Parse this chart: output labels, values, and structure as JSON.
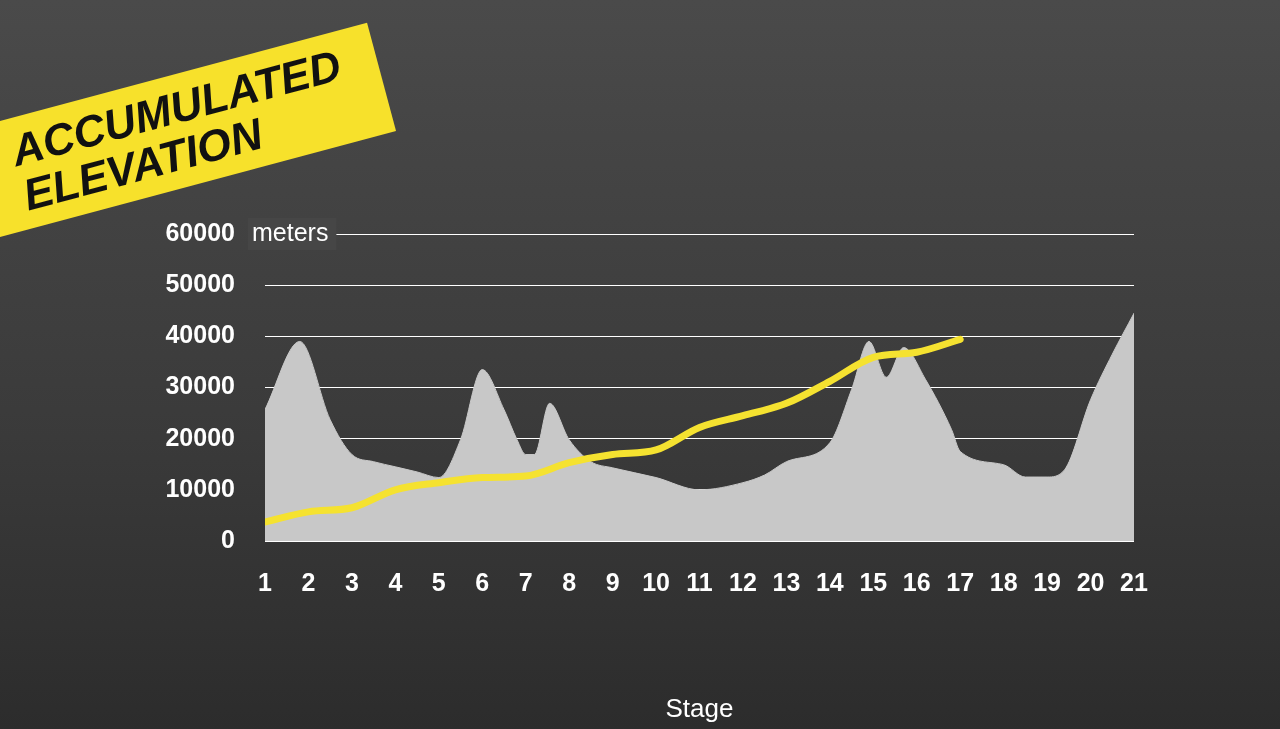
{
  "chart_data": {
    "type": "line",
    "title": "ACCUMULATED ELEVATION",
    "xlabel": "Stage",
    "ylabel": "meters",
    "xlim": [
      1,
      21
    ],
    "xticks": [
      1,
      2,
      3,
      4,
      5,
      6,
      7,
      8,
      9,
      10,
      11,
      12,
      13,
      14,
      15,
      16,
      17,
      18,
      19,
      20,
      21
    ],
    "ylim": [
      0,
      60000
    ],
    "yticks": [
      0,
      10000,
      20000,
      30000,
      40000,
      50000,
      60000
    ],
    "grid": "y",
    "legend": false,
    "marker": "none",
    "series": [
      {
        "type": "area",
        "color": "#c8c8c8",
        "x": [
          1,
          1.8,
          2.5,
          3,
          3.5,
          4,
          4.5,
          5,
          5.5,
          6,
          6.5,
          6.8,
          7,
          7.2,
          7.55,
          8,
          8.5,
          9,
          10,
          11,
          12,
          12.5,
          13,
          14,
          14.5,
          14.9,
          15.3,
          15.7,
          16.2,
          16.8,
          17,
          18,
          18.5,
          19,
          19.4,
          20,
          20.5,
          21
        ],
        "values": [
          25700,
          39000,
          23700,
          16900,
          15500,
          14500,
          13500,
          12400,
          19800,
          33500,
          25700,
          19800,
          16900,
          16900,
          26900,
          19800,
          15500,
          14300,
          12400,
          10000,
          11400,
          12900,
          15500,
          19200,
          29600,
          39000,
          32000,
          37800,
          31600,
          21800,
          17500,
          14900,
          12500,
          12500,
          13900,
          27600,
          36500,
          44500
        ]
      },
      {
        "type": "line",
        "color": "#f5e230",
        "x": [
          1,
          2,
          3,
          4,
          5,
          6,
          7,
          8,
          9,
          10,
          11,
          12,
          13,
          14,
          15,
          16,
          17
        ],
        "values": [
          3700,
          5700,
          6500,
          10000,
          11400,
          12400,
          12700,
          15300,
          16900,
          17800,
          22200,
          24500,
          26900,
          31200,
          35900,
          36900,
          39400
        ]
      }
    ]
  }
}
